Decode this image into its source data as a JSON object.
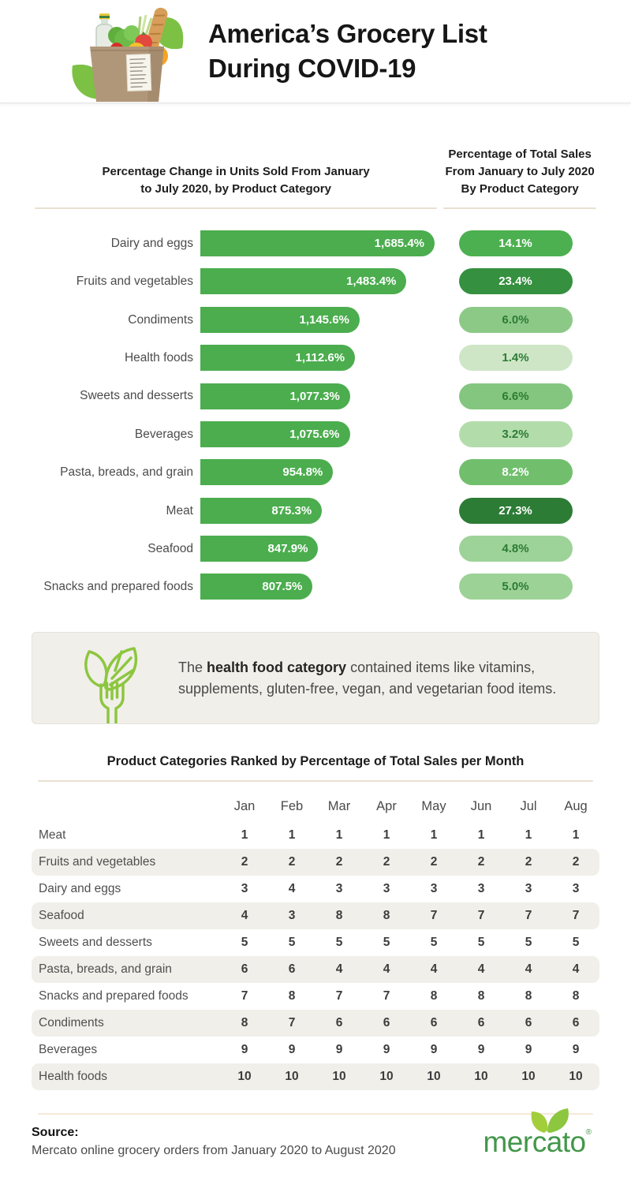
{
  "header": {
    "title": "America’s Grocery List\nDuring COVID-19"
  },
  "chart_data": [
    {
      "type": "bar",
      "title": "Percentage Change in Units Sold From January\nto July 2020, by Product Category",
      "categories": [
        "Dairy and eggs",
        "Fruits and vegetables",
        "Condiments",
        "Health foods",
        "Sweets and desserts",
        "Beverages",
        "Pasta, breads, and grain",
        "Meat",
        "Seafood",
        "Snacks and prepared foods"
      ],
      "values": [
        1685.4,
        1483.4,
        1145.6,
        1112.6,
        1077.3,
        1075.6,
        954.8,
        875.3,
        847.9,
        807.5
      ],
      "labels": [
        "1,685.4%",
        "1,483.4%",
        "1,145.6%",
        "1,112.6%",
        "1,077.3%",
        "1,075.6%",
        "954.8%",
        "875.3%",
        "847.9%",
        "807.5%"
      ],
      "xlim": [
        0,
        1685.4
      ],
      "bar_color": "#4bad4e",
      "grid": false
    },
    {
      "type": "bar",
      "title": "Percentage of Total Sales\nFrom January to July 2020\nBy Product Category",
      "categories": [
        "Dairy and eggs",
        "Fruits and vegetables",
        "Condiments",
        "Health foods",
        "Sweets and desserts",
        "Beverages",
        "Pasta, breads, and grain",
        "Meat",
        "Seafood",
        "Snacks and prepared foods"
      ],
      "values": [
        14.1,
        23.4,
        6.0,
        1.4,
        6.6,
        3.2,
        8.2,
        27.3,
        4.8,
        5.0
      ],
      "labels": [
        "14.1%",
        "23.4%",
        "6.0%",
        "1.4%",
        "6.6%",
        "3.2%",
        "8.2%",
        "27.3%",
        "4.8%",
        "5.0%"
      ],
      "pill_colors": [
        "#4cb050",
        "#35903f",
        "#8cc987",
        "#cee6c6",
        "#84c67f",
        "#b3dcab",
        "#71bf6d",
        "#2c7c35",
        "#9dd298",
        "#9cd296"
      ],
      "text_colors": [
        "#ffffff",
        "#ffffff",
        "#2c7c35",
        "#2c7c35",
        "#2c7c35",
        "#2c7c35",
        "#ffffff",
        "#ffffff",
        "#2c7c35",
        "#2c7c35"
      ]
    },
    {
      "type": "table",
      "title": "Product Categories Ranked by Percentage of Total Sales per Month",
      "columns": [
        "Jan",
        "Feb",
        "Mar",
        "Apr",
        "May",
        "Jun",
        "Jul",
        "Aug"
      ],
      "rows": [
        {
          "label": "Meat",
          "values": [
            1,
            1,
            1,
            1,
            1,
            1,
            1,
            1
          ]
        },
        {
          "label": "Fruits and vegetables",
          "values": [
            2,
            2,
            2,
            2,
            2,
            2,
            2,
            2
          ]
        },
        {
          "label": "Dairy and eggs",
          "values": [
            3,
            4,
            3,
            3,
            3,
            3,
            3,
            3
          ]
        },
        {
          "label": "Seafood",
          "values": [
            4,
            3,
            8,
            8,
            7,
            7,
            7,
            7
          ]
        },
        {
          "label": "Sweets and desserts",
          "values": [
            5,
            5,
            5,
            5,
            5,
            5,
            5,
            5
          ]
        },
        {
          "label": "Pasta, breads, and grain",
          "values": [
            6,
            6,
            4,
            4,
            4,
            4,
            4,
            4
          ]
        },
        {
          "label": "Snacks and prepared foods",
          "values": [
            7,
            8,
            7,
            7,
            8,
            8,
            8,
            8
          ]
        },
        {
          "label": "Condiments",
          "values": [
            8,
            7,
            6,
            6,
            6,
            6,
            6,
            6
          ]
        },
        {
          "label": "Beverages",
          "values": [
            9,
            9,
            9,
            9,
            9,
            9,
            9,
            9
          ]
        },
        {
          "label": "Health foods",
          "values": [
            10,
            10,
            10,
            10,
            10,
            10,
            10,
            10
          ]
        }
      ]
    }
  ],
  "note": {
    "prefix": "The ",
    "bold": "health food category",
    "suffix": " contained items like vitamins, supplements, gluten-free, vegan, and vegetarian food items."
  },
  "footer": {
    "source_label": "Source:",
    "source_text": "Mercato online grocery orders from January 2020 to August 2020",
    "logo_text": "mercato",
    "registered": "®"
  },
  "colors": {
    "bar_green": "#4bad4e",
    "dark_pill_green": "#2c7c35",
    "leaf_green": "#8dc63f",
    "logo_green": "#43974a",
    "divider_beige": "#e9e1d2",
    "footer_divider": "#f8e8d8",
    "stripe_gray": "#f0efe9"
  }
}
